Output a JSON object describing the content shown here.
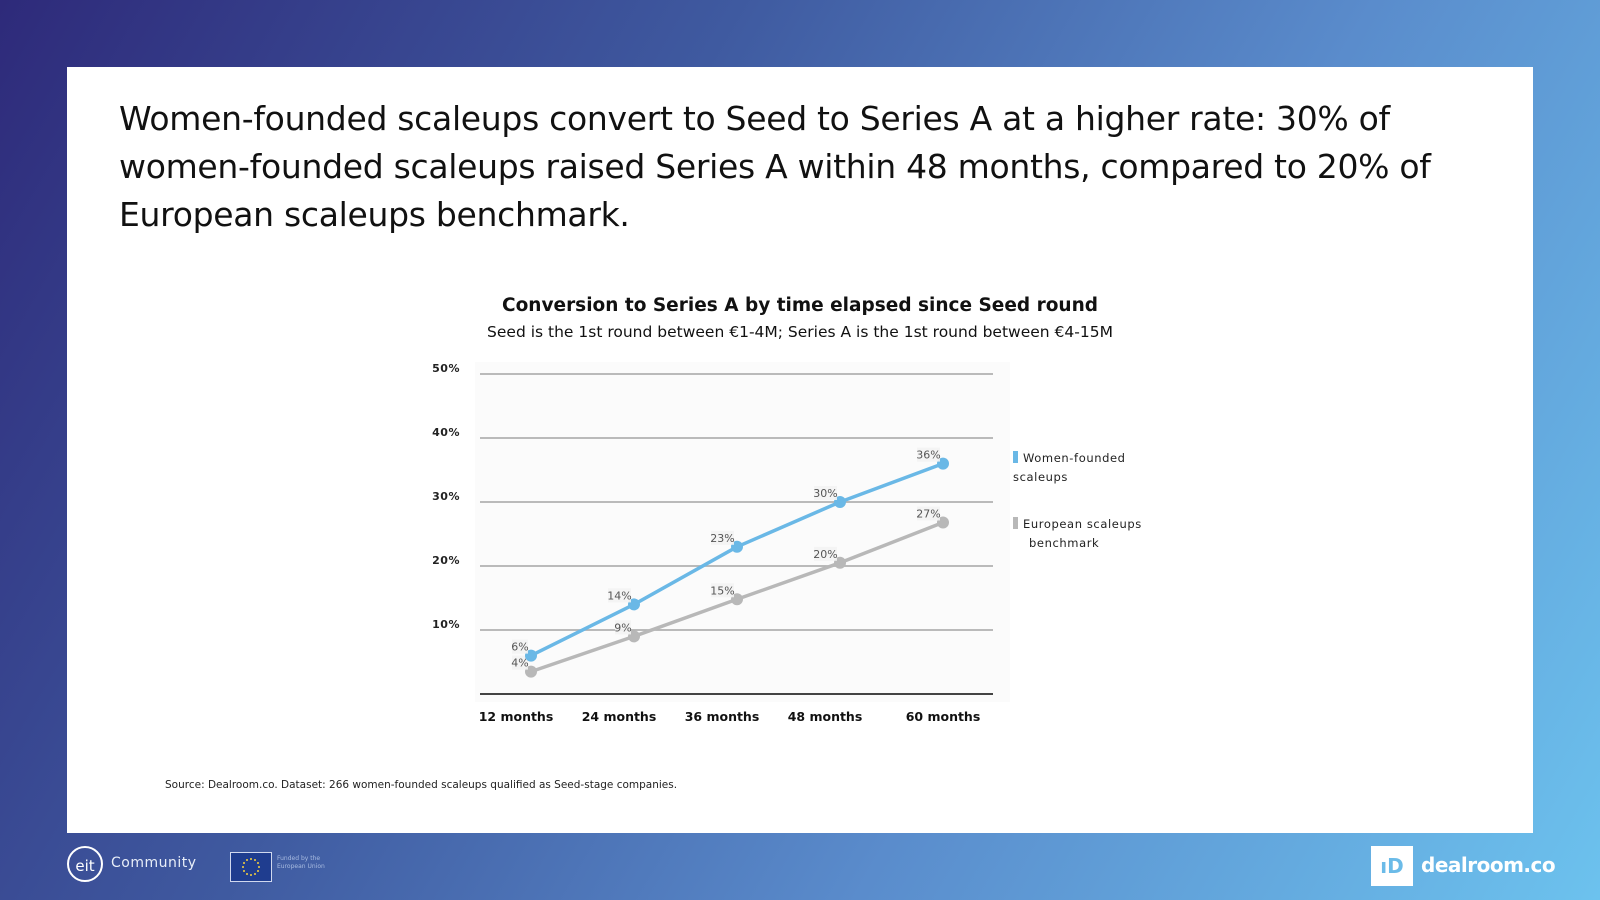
{
  "headline": "Women-founded scaleups convert to Seed to Series A at a higher rate: 30% of women-founded scaleups raised Series A within 48 months, compared to 20% of European scaleups benchmark.",
  "source": "Source: Dealroom.co. Dataset: 266 women-founded scaleups qualified as Seed-stage companies.",
  "footer": {
    "eit_logo": "eit",
    "community": "Community",
    "eu_text": "Funded by the European Union",
    "dealroom_icon": "ıD",
    "dealroom": "dealroom.co"
  },
  "chart_data": {
    "type": "line",
    "title": "Conversion to Series A by time elapsed since Seed round",
    "subtitle": "Seed is the 1st round between €1-4M; Series A is the 1st round between €4-15M",
    "categories": [
      "12 months",
      "24 months",
      "36 months",
      "48 months",
      "60 months"
    ],
    "y_ticks": [
      "10%",
      "20%",
      "30%",
      "40%",
      "50%"
    ],
    "ylim": [
      0,
      50
    ],
    "grid": true,
    "legend_position": "right",
    "series": [
      {
        "name": "Women-founded scaleups",
        "values": [
          6,
          14,
          23,
          30,
          36
        ],
        "labels": [
          "6%",
          "14%",
          "23%",
          "30%",
          "36%"
        ],
        "color": "#6ab8e6"
      },
      {
        "name": "European scaleups benchmark",
        "values": [
          3.5,
          9,
          14.8,
          20.5,
          26.8
        ],
        "labels": [
          "4%",
          "9%",
          "15%",
          "20%",
          "27%"
        ],
        "color": "#b8b8b8"
      }
    ]
  }
}
